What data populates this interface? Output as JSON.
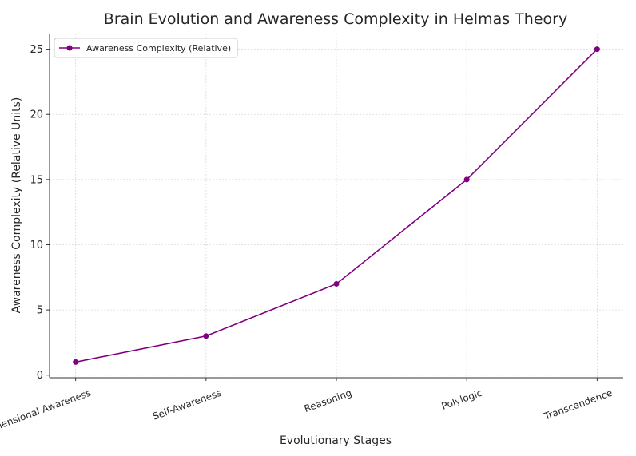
{
  "chart_data": {
    "type": "line",
    "title": "Brain Evolution and Awareness Complexity in Helmas Theory",
    "x_label": "Evolutionary Stages",
    "y_label": "Awareness Complexity (Relative Units)",
    "categories": [
      "Dimensional Awareness",
      "Self-Awareness",
      "Reasoning",
      "Polylogic",
      "Transcendence"
    ],
    "series": [
      {
        "name": "Awareness Complexity (Relative)",
        "color": "#800080",
        "values": [
          1,
          3,
          7,
          15,
          25
        ]
      }
    ],
    "ylim": [
      -0.2,
      26.2
    ],
    "yticks": [
      0,
      5,
      10,
      15,
      20,
      25
    ],
    "grid": true,
    "legend": "upper-left"
  }
}
